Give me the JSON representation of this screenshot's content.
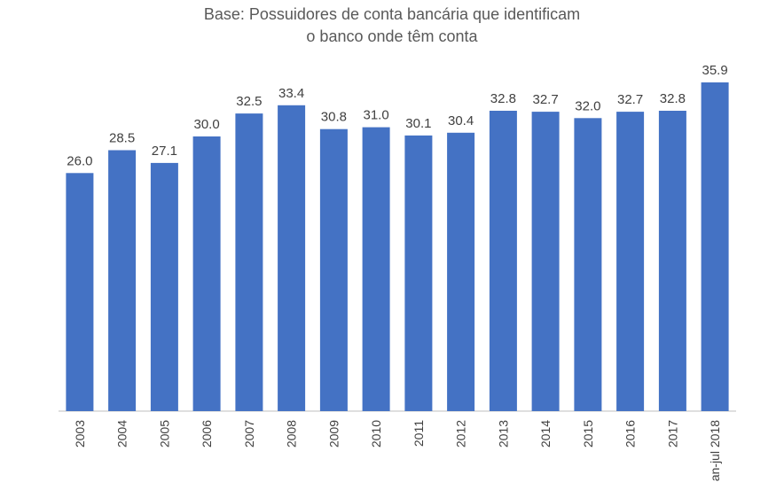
{
  "chart_data": {
    "type": "bar",
    "title": "",
    "subtitle_lines": [
      "Base: Possuidores de conta bancária que identificam",
      "o banco onde têm conta"
    ],
    "categories": [
      "2003",
      "2004",
      "2005",
      "2006",
      "2007",
      "2008",
      "2009",
      "2010",
      "2011",
      "2012",
      "2013",
      "2014",
      "2015",
      "2016",
      "2017",
      "jan-jul 2018"
    ],
    "values": [
      26.0,
      28.5,
      27.1,
      30.0,
      32.5,
      33.4,
      30.8,
      31.0,
      30.1,
      30.4,
      32.8,
      32.7,
      32.0,
      32.7,
      32.8,
      35.9
    ],
    "value_labels": [
      "26.0",
      "28.5",
      "27.1",
      "30.0",
      "32.5",
      "33.4",
      "30.8",
      "31.0",
      "30.1",
      "30.4",
      "32.8",
      "32.7",
      "32.0",
      "32.7",
      "32.8",
      "35.9"
    ],
    "xlabel": "",
    "ylabel": "",
    "ylim": [
      0,
      36
    ],
    "grid": false,
    "legend": "none",
    "colors": {
      "bar": "#4472C4",
      "axis": "#bfbfbf",
      "text": "#404040"
    }
  }
}
